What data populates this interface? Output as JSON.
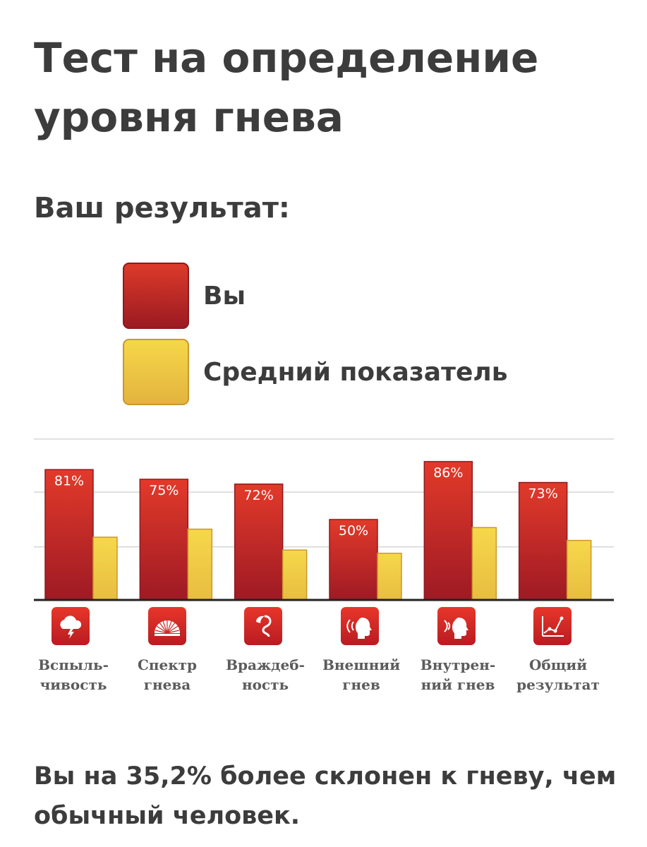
{
  "title": "Тест на определение уровня гнева",
  "subtitle": "Ваш результат:",
  "legend": [
    {
      "label": "Вы",
      "color": "#c9282a"
    },
    {
      "label": "Средний показатель",
      "color": "#f0cd48"
    }
  ],
  "chart_data": {
    "type": "bar",
    "categories": [
      "Вспыль-\nчивость",
      "Спектр\nгнева",
      "Враждеб-\nность",
      "Внешний\nгнев",
      "Внутрен-\nний гнев",
      "Общий\nрезультат"
    ],
    "series": [
      {
        "name": "Вы",
        "values": [
          81,
          75,
          72,
          50,
          86,
          73
        ],
        "labels": [
          "81%",
          "75%",
          "72%",
          "50%",
          "86%",
          "73%"
        ],
        "color": "#c9282a"
      },
      {
        "name": "Средний показатель",
        "values": [
          39,
          44,
          31,
          29,
          45,
          37
        ],
        "color": "#f0cd48"
      }
    ],
    "ylim": [
      0,
      100
    ],
    "grid": true,
    "legend_position": "top-left"
  },
  "icons": [
    "storm-cloud-icon",
    "spectrum-fan-icon",
    "cobra-icon",
    "head-sound-out-icon",
    "head-sound-in-icon",
    "line-graph-icon"
  ],
  "summary": "Вы на 35,2% более склонен к гневу, чем обычный человек."
}
